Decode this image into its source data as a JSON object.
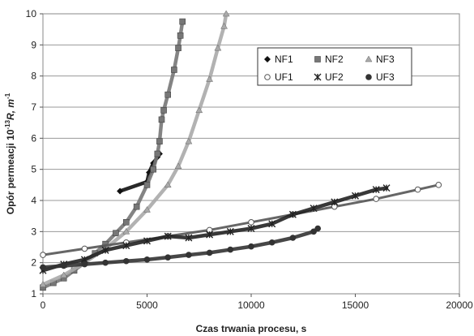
{
  "chart_data": {
    "type": "scatter",
    "title": "",
    "xlabel": "Czas trwania procesu, s",
    "ylabel_main": "Opór permeacji 10",
    "ylabel_exp": "-13",
    "ylabel_rest": "R, m",
    "ylabel_exp2": "-1",
    "xlim": [
      0,
      20000
    ],
    "ylim": [
      1,
      10
    ],
    "x_ticks": [
      "0",
      "5000",
      "10000",
      "15000",
      "20000"
    ],
    "y_ticks": [
      "1",
      "2",
      "3",
      "4",
      "5",
      "6",
      "7",
      "8",
      "9",
      "10"
    ],
    "grid": "horizontal",
    "legend_position": "top-right",
    "series": [
      {
        "name": "NF1",
        "marker": "diamond",
        "color": "#111111",
        "x": [
          3700,
          5000,
          5100,
          5300,
          5500,
          5600
        ],
        "y": [
          4.3,
          4.6,
          4.9,
          5.2,
          5.4,
          5.5
        ]
      },
      {
        "name": "NF2",
        "marker": "square",
        "color": "#777777",
        "x": [
          0,
          500,
          1000,
          1500,
          2000,
          2500,
          3000,
          3500,
          4000,
          4500,
          5000,
          5300,
          5500,
          5600,
          5700,
          5800,
          6000,
          6300,
          6500,
          6600,
          6700
        ],
        "y": [
          1.2,
          1.35,
          1.5,
          1.75,
          2.0,
          2.3,
          2.6,
          2.95,
          3.3,
          3.8,
          4.5,
          5.0,
          5.5,
          5.9,
          6.6,
          6.9,
          7.4,
          8.2,
          8.9,
          9.3,
          9.75
        ]
      },
      {
        "name": "NF3",
        "marker": "triangle",
        "color": "#aaaaaa",
        "x": [
          0,
          1000,
          2000,
          3000,
          4000,
          5000,
          6000,
          6500,
          7000,
          7500,
          8000,
          8400,
          8700,
          8800
        ],
        "y": [
          1.3,
          1.6,
          2.0,
          2.45,
          3.0,
          3.7,
          4.5,
          5.1,
          5.9,
          6.9,
          7.9,
          8.9,
          9.6,
          10.0
        ]
      },
      {
        "name": "UF1",
        "marker": "circle-open",
        "color": "#555555",
        "x": [
          0,
          2000,
          4000,
          6000,
          8000,
          10000,
          12000,
          14000,
          16000,
          18000,
          19000
        ],
        "y": [
          2.25,
          2.45,
          2.65,
          2.85,
          3.05,
          3.3,
          3.55,
          3.8,
          4.05,
          4.35,
          4.5
        ]
      },
      {
        "name": "UF2",
        "marker": "asterisk",
        "color": "#222222",
        "x": [
          0,
          1000,
          2000,
          3000,
          4000,
          5000,
          6000,
          7000,
          8000,
          9000,
          10000,
          11000,
          12000,
          13000,
          14000,
          15000,
          16000,
          16500
        ],
        "y": [
          1.75,
          1.95,
          2.1,
          2.4,
          2.55,
          2.7,
          2.85,
          2.8,
          2.9,
          3.0,
          3.1,
          3.25,
          3.55,
          3.75,
          3.95,
          4.15,
          4.35,
          4.4
        ]
      },
      {
        "name": "UF3",
        "marker": "circle-filled",
        "color": "#333333",
        "x": [
          0,
          1000,
          2000,
          3000,
          4000,
          5000,
          6000,
          7000,
          8000,
          9000,
          10000,
          11000,
          12000,
          13000,
          13200
        ],
        "y": [
          1.85,
          1.9,
          1.95,
          2.0,
          2.05,
          2.1,
          2.17,
          2.25,
          2.32,
          2.42,
          2.52,
          2.65,
          2.8,
          3.0,
          3.1
        ]
      }
    ]
  }
}
